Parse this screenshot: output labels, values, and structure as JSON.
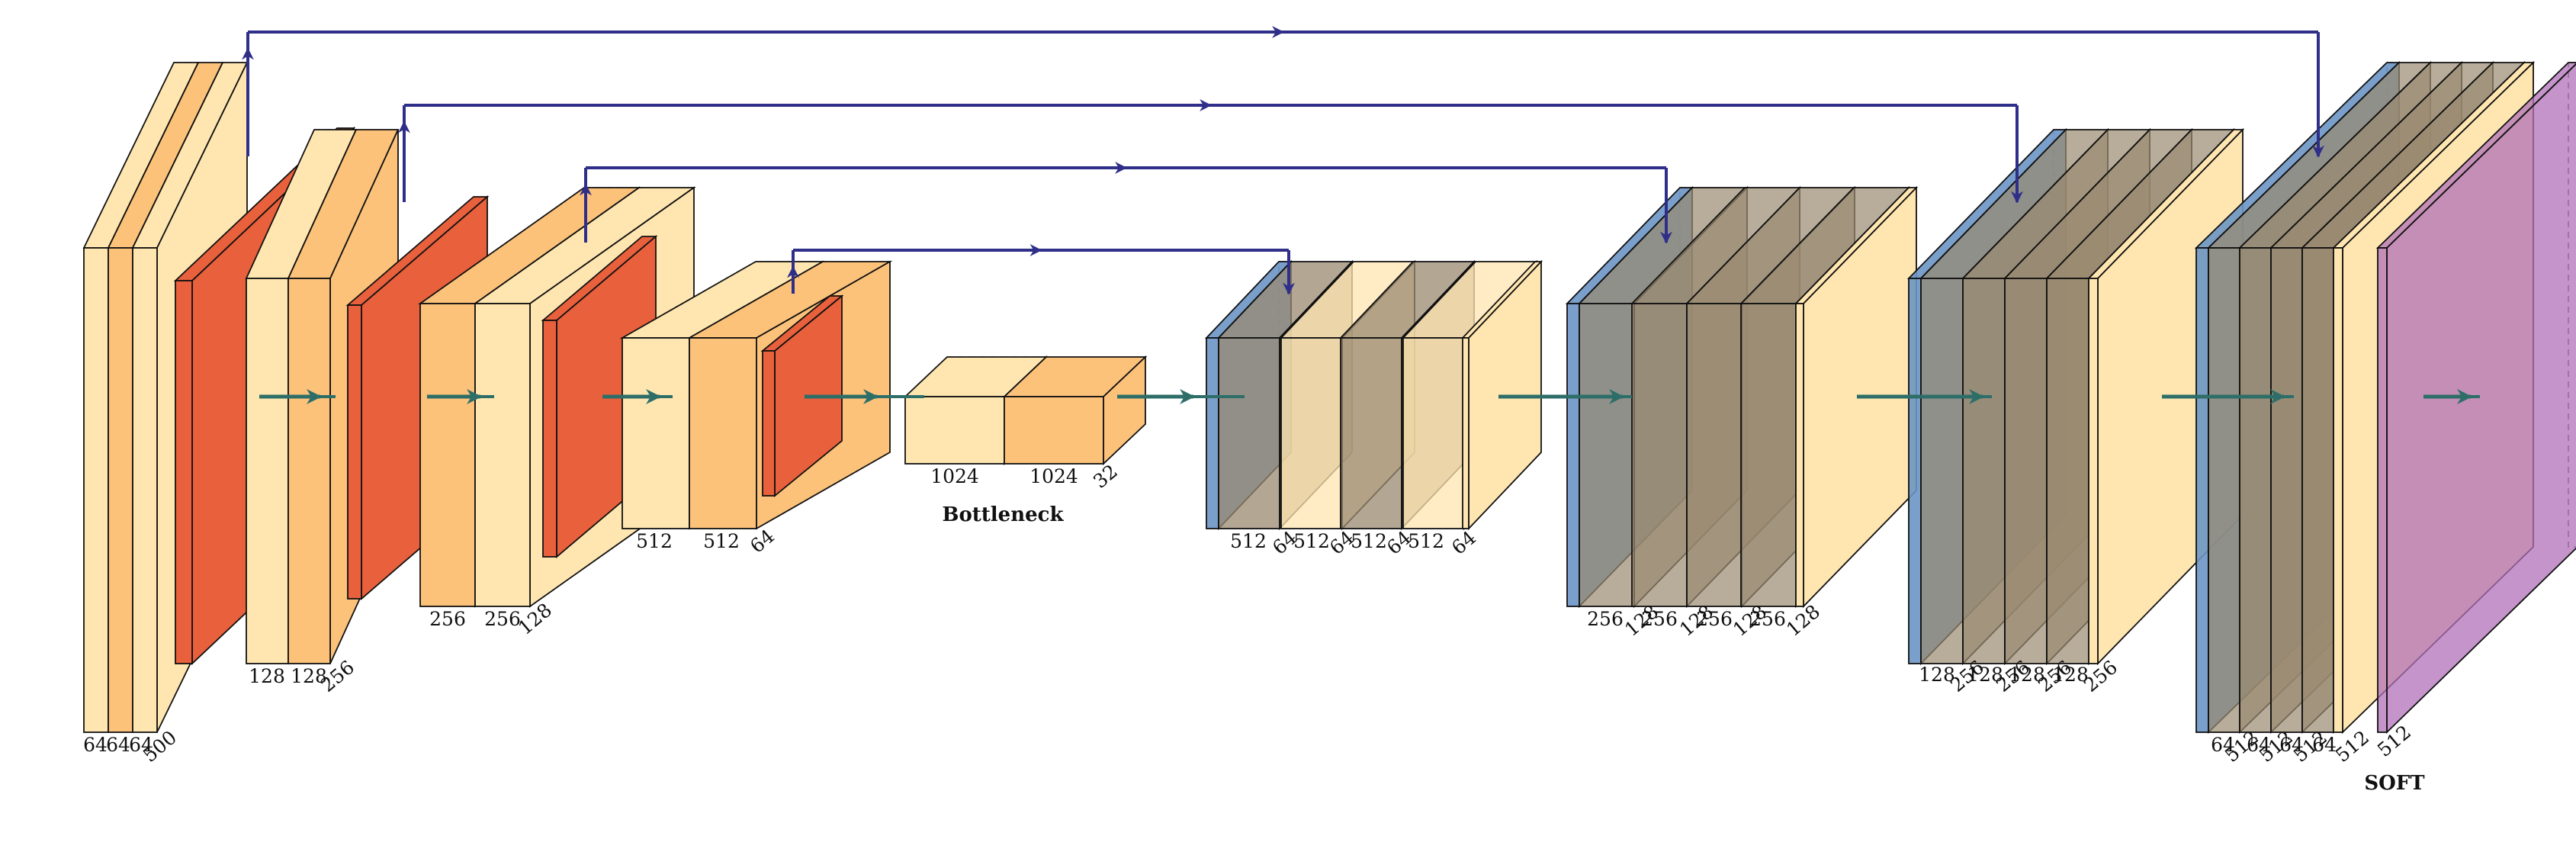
{
  "colors": {
    "conv": "#ffe6b0",
    "conv_relu": "#fcc27a",
    "pool": "#e8603c",
    "unpool": "#6c95c4",
    "concat": "#9a8a70",
    "softmax": "#b070b8",
    "skip": "#2f2f8a",
    "flow": "#2e6e68"
  },
  "encoder": [
    {
      "name": "enc1",
      "labels": [
        "64",
        "64",
        "64",
        "500"
      ]
    },
    {
      "name": "enc2",
      "labels": [
        "128",
        "128",
        "256"
      ]
    },
    {
      "name": "enc3",
      "labels": [
        "256",
        "256",
        "128"
      ]
    },
    {
      "name": "enc4",
      "labels": [
        "512",
        "512",
        "64"
      ]
    }
  ],
  "bottleneck": {
    "labels": [
      "1024",
      "1024",
      "32"
    ],
    "caption": "Bottleneck"
  },
  "decoder": [
    {
      "name": "dec1",
      "labels": [
        "512",
        "64",
        "512",
        "64",
        "512",
        "64",
        "512",
        "64"
      ]
    },
    {
      "name": "dec2",
      "labels": [
        "256",
        "128",
        "256",
        "128",
        "256",
        "128",
        "256",
        "128"
      ]
    },
    {
      "name": "dec3",
      "labels": [
        "128",
        "256",
        "128",
        "256",
        "128",
        "256",
        "128",
        "256"
      ]
    },
    {
      "name": "dec4",
      "labels": [
        "64",
        "512",
        "64",
        "512",
        "64",
        "512",
        "64",
        "512"
      ]
    }
  ],
  "output": {
    "labels": [
      "512"
    ],
    "caption": "SOFT"
  }
}
